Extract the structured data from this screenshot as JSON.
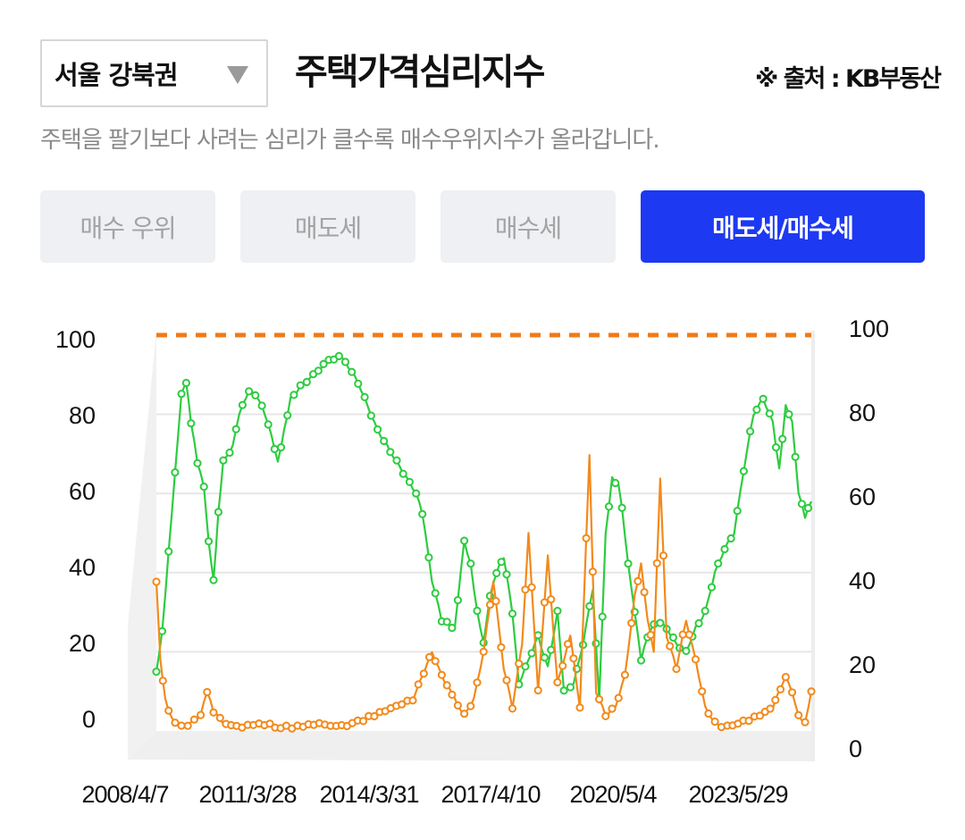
{
  "header": {
    "region": "서울 강북권",
    "title": "주택가격심리지수",
    "source": "※ 출처 : KB부동산",
    "subtitle": "주택을 팔기보다 사려는 심리가 클수록 매수우위지수가 올라갑니다."
  },
  "tabs": [
    {
      "label": "매수 우위",
      "active": false
    },
    {
      "label": "매도세",
      "active": false
    },
    {
      "label": "매수세",
      "active": false
    },
    {
      "label": "매도세/매수세",
      "active": true
    }
  ],
  "colors": {
    "accent": "#1d39f2",
    "green": "#2ecc40",
    "orange": "#f28a1c",
    "dashed": "#f07a18"
  },
  "chart_data": {
    "type": "line",
    "x_tick_labels": [
      "2008/4/7",
      "2011/3/28",
      "2014/3/31",
      "2017/4/10",
      "2020/5/4",
      "2023/5/29"
    ],
    "left_y_ticks": [
      "0",
      "20",
      "40",
      "60",
      "80",
      "100"
    ],
    "right_y_ticks": [
      "0",
      "20",
      "40",
      "60",
      "80",
      "100"
    ],
    "ylim": [
      0,
      100
    ],
    "x_range": [
      "2008-04-07",
      "2025-04-01"
    ],
    "reference_line": {
      "y": 100,
      "style": "dashed"
    },
    "grid": true,
    "series": [
      {
        "color": "green",
        "points": [
          [
            "2008-04-07",
            15
          ],
          [
            "2008-06-01",
            25
          ],
          [
            "2008-08-01",
            45
          ],
          [
            "2008-10-01",
            65
          ],
          [
            "2008-12-01",
            85
          ],
          [
            "2009-01-15",
            88
          ],
          [
            "2009-03-01",
            78
          ],
          [
            "2009-05-01",
            68
          ],
          [
            "2009-07-01",
            62
          ],
          [
            "2009-08-15",
            48
          ],
          [
            "2009-10-01",
            38
          ],
          [
            "2009-11-15",
            55
          ],
          [
            "2010-01-01",
            68
          ],
          [
            "2010-04-01",
            72
          ],
          [
            "2010-06-01",
            80
          ],
          [
            "2010-09-01",
            86
          ],
          [
            "2010-12-01",
            84
          ],
          [
            "2011-02-01",
            80
          ],
          [
            "2011-04-01",
            75
          ],
          [
            "2011-06-01",
            68
          ],
          [
            "2011-08-01",
            76
          ],
          [
            "2011-10-01",
            84
          ],
          [
            "2012-01-01",
            87
          ],
          [
            "2012-05-01",
            90
          ],
          [
            "2012-09-01",
            93
          ],
          [
            "2013-01-01",
            95
          ],
          [
            "2013-04-01",
            92
          ],
          [
            "2013-07-01",
            88
          ],
          [
            "2013-10-01",
            82
          ],
          [
            "2014-01-01",
            76
          ],
          [
            "2014-04-01",
            72
          ],
          [
            "2014-07-01",
            68
          ],
          [
            "2014-10-01",
            64
          ],
          [
            "2015-01-01",
            60
          ],
          [
            "2015-03-01",
            55
          ],
          [
            "2015-06-01",
            38
          ],
          [
            "2015-09-01",
            28
          ],
          [
            "2016-01-01",
            26
          ],
          [
            "2016-04-01",
            48
          ],
          [
            "2016-06-01",
            42
          ],
          [
            "2016-08-01",
            30
          ],
          [
            "2016-10-01",
            22
          ],
          [
            "2016-12-01",
            34
          ],
          [
            "2017-02-01",
            40
          ],
          [
            "2017-04-10",
            44
          ],
          [
            "2017-07-01",
            30
          ],
          [
            "2017-09-01",
            12
          ],
          [
            "2017-12-01",
            18
          ],
          [
            "2018-03-01",
            24
          ],
          [
            "2018-06-01",
            16
          ],
          [
            "2018-09-01",
            30
          ],
          [
            "2018-11-01",
            10
          ],
          [
            "2019-02-01",
            12
          ],
          [
            "2019-05-01",
            22
          ],
          [
            "2019-08-01",
            36
          ],
          [
            "2019-10-01",
            8
          ],
          [
            "2019-12-01",
            50
          ],
          [
            "2020-02-01",
            64
          ],
          [
            "2020-04-01",
            62
          ],
          [
            "2020-05-04",
            56
          ],
          [
            "2020-07-01",
            42
          ],
          [
            "2020-09-01",
            30
          ],
          [
            "2020-11-01",
            18
          ],
          [
            "2021-01-01",
            24
          ],
          [
            "2021-04-01",
            28
          ],
          [
            "2021-07-01",
            26
          ],
          [
            "2021-10-01",
            22
          ],
          [
            "2022-01-01",
            20
          ],
          [
            "2022-04-01",
            26
          ],
          [
            "2022-07-01",
            30
          ],
          [
            "2022-10-01",
            40
          ],
          [
            "2023-01-01",
            46
          ],
          [
            "2023-04-01",
            50
          ],
          [
            "2023-07-01",
            66
          ],
          [
            "2023-10-01",
            80
          ],
          [
            "2024-01-01",
            84
          ],
          [
            "2024-04-01",
            78
          ],
          [
            "2024-06-01",
            66
          ],
          [
            "2024-08-01",
            82
          ],
          [
            "2024-10-01",
            78
          ],
          [
            "2024-12-01",
            60
          ],
          [
            "2025-02-01",
            54
          ],
          [
            "2025-04-01",
            58
          ]
        ]
      },
      {
        "color": "orange",
        "points": [
          [
            "2008-04-07",
            38
          ],
          [
            "2008-05-15",
            18
          ],
          [
            "2008-07-01",
            8
          ],
          [
            "2008-09-01",
            3
          ],
          [
            "2008-12-01",
            1
          ],
          [
            "2009-03-01",
            2
          ],
          [
            "2009-06-01",
            4
          ],
          [
            "2009-08-01",
            10
          ],
          [
            "2009-10-01",
            5
          ],
          [
            "2010-01-01",
            2
          ],
          [
            "2010-06-01",
            1
          ],
          [
            "2011-01-01",
            2
          ],
          [
            "2011-06-01",
            1
          ],
          [
            "2012-01-01",
            1
          ],
          [
            "2012-06-01",
            2
          ],
          [
            "2013-01-01",
            1
          ],
          [
            "2013-06-01",
            2
          ],
          [
            "2013-12-01",
            4
          ],
          [
            "2014-06-01",
            6
          ],
          [
            "2014-12-01",
            8
          ],
          [
            "2015-06-01",
            20
          ],
          [
            "2015-09-01",
            14
          ],
          [
            "2016-01-01",
            8
          ],
          [
            "2016-04-01",
            4
          ],
          [
            "2016-07-01",
            8
          ],
          [
            "2016-10-01",
            20
          ],
          [
            "2017-01-01",
            38
          ],
          [
            "2017-04-10",
            16
          ],
          [
            "2017-07-01",
            6
          ],
          [
            "2017-10-01",
            22
          ],
          [
            "2017-12-01",
            50
          ],
          [
            "2018-03-01",
            10
          ],
          [
            "2018-06-01",
            44
          ],
          [
            "2018-09-01",
            12
          ],
          [
            "2019-01-01",
            24
          ],
          [
            "2019-04-01",
            6
          ],
          [
            "2019-07-01",
            70
          ],
          [
            "2019-09-01",
            10
          ],
          [
            "2019-12-01",
            4
          ],
          [
            "2020-03-01",
            6
          ],
          [
            "2020-06-01",
            14
          ],
          [
            "2020-09-01",
            34
          ],
          [
            "2020-11-01",
            42
          ],
          [
            "2021-01-01",
            28
          ],
          [
            "2021-03-01",
            20
          ],
          [
            "2021-05-01",
            64
          ],
          [
            "2021-07-01",
            24
          ],
          [
            "2021-10-01",
            16
          ],
          [
            "2022-01-01",
            28
          ],
          [
            "2022-04-01",
            18
          ],
          [
            "2022-07-01",
            6
          ],
          [
            "2022-10-01",
            2
          ],
          [
            "2023-01-01",
            1
          ],
          [
            "2023-06-01",
            2
          ],
          [
            "2023-12-01",
            4
          ],
          [
            "2024-04-01",
            6
          ],
          [
            "2024-08-01",
            14
          ],
          [
            "2024-10-01",
            10
          ],
          [
            "2024-12-01",
            4
          ],
          [
            "2025-02-01",
            2
          ],
          [
            "2025-04-01",
            10
          ]
        ]
      }
    ]
  }
}
